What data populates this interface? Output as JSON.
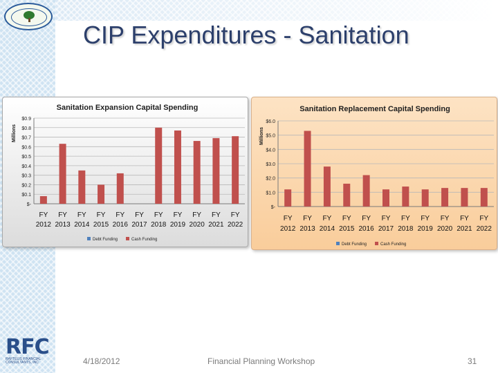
{
  "slide": {
    "title": "CIP Expenditures - Sanitation",
    "footer_date": "4/18/2012",
    "footer_event": "Financial Planning Workshop",
    "page_number": "31"
  },
  "logo": {
    "seal_text": "",
    "company_letters": "RFC",
    "company_sub": "RAFTELIS FINANCIAL CONSULTANTS, INC"
  },
  "colors": {
    "title": "#2c3f6b",
    "bar": "#c0504d",
    "debt_funding": "#4f81bd",
    "panel2_bg": "#fbd9b0"
  },
  "chart_data": [
    {
      "type": "bar",
      "title": "Sanitation Expansion Capital Spending",
      "ylabel": "Millions",
      "categories": [
        "FY 2012",
        "FY 2013",
        "FY 2014",
        "FY 2015",
        "FY 2016",
        "FY 2017",
        "FY 2018",
        "FY 2019",
        "FY 2020",
        "FY 2021",
        "FY 2022"
      ],
      "yticks": [
        "$0.9",
        "$0.8",
        "$0.7",
        "$0.6",
        "$0.5",
        "$0.4",
        "$0.3",
        "$0.2",
        "$0.1",
        "$-"
      ],
      "ylim": [
        0,
        0.9
      ],
      "series": [
        {
          "name": "Debt Funding",
          "values": [
            0,
            0,
            0,
            0,
            0,
            0,
            0,
            0,
            0,
            0,
            0
          ]
        },
        {
          "name": "Cash Funding",
          "values": [
            0.08,
            0.63,
            0.35,
            0.2,
            0.32,
            0,
            0.8,
            0.77,
            0.66,
            0.69,
            0.71
          ]
        }
      ],
      "legend": "bottom",
      "grid": true
    },
    {
      "type": "bar",
      "title": "Sanitation Replacement Capital Spending",
      "ylabel": "Millions",
      "categories": [
        "FY 2012",
        "FY 2013",
        "FY 2014",
        "FY 2015",
        "FY 2016",
        "FY 2017",
        "FY 2018",
        "FY 2019",
        "FY 2020",
        "FY 2021",
        "FY 2022"
      ],
      "yticks": [
        "$6.0",
        "$5.0",
        "$4.0",
        "$3.0",
        "$2.0",
        "$1.0",
        "$-"
      ],
      "ylim": [
        0,
        6
      ],
      "series": [
        {
          "name": "Debt Funding",
          "values": [
            0,
            0,
            0,
            0,
            0,
            0,
            0,
            0,
            0,
            0,
            0
          ]
        },
        {
          "name": "Cash Funding",
          "values": [
            1.2,
            5.3,
            2.8,
            1.6,
            2.2,
            1.2,
            1.4,
            1.2,
            1.3,
            1.3,
            1.3
          ]
        }
      ],
      "legend": "bottom",
      "grid": true
    }
  ]
}
